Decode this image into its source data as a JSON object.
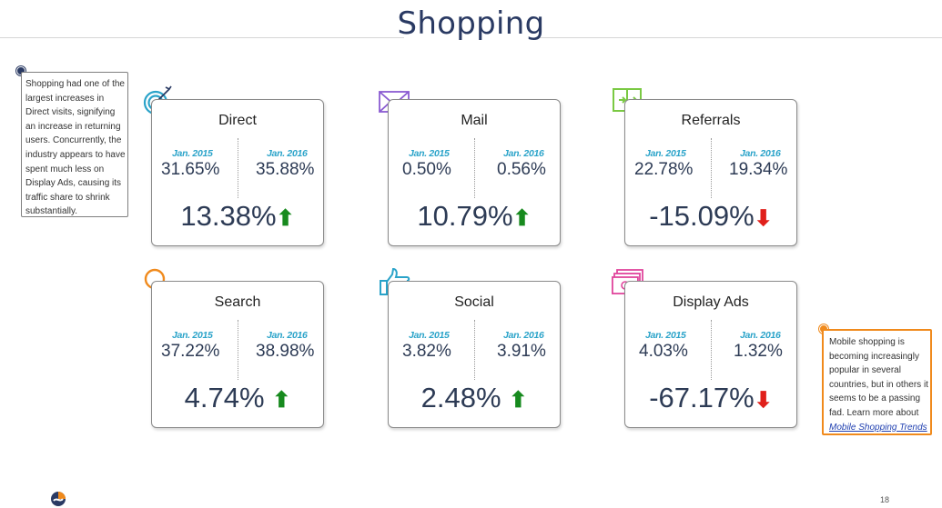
{
  "title": "Shopping",
  "left_note": "Shopping had one of the largest increases in Direct visits, signifying an increase in returning users.  Concurrently, the industry appears to have spent much less on Display Ads, causing its traffic share to shrink substantially.",
  "right_note": {
    "text": "Mobile shopping is becoming increasingly popular in several countries, but in others it seems to be a passing fad. Learn more about",
    "link": "Mobile Shopping Trends"
  },
  "cards": [
    {
      "name": "Direct",
      "y1_label": "Jan. 2015",
      "y1_value": "31.65%",
      "y2_label": "Jan. 2016",
      "y2_value": "35.88%",
      "change": "13.38%",
      "arrow": "⬆"
    },
    {
      "name": "Mail",
      "y1_label": "Jan. 2015",
      "y1_value": "0.50%",
      "y2_label": "Jan. 2016",
      "y2_value": "0.56%",
      "change": "10.79%",
      "arrow": "⬆"
    },
    {
      "name": "Referrals",
      "y1_label": "Jan. 2015",
      "y1_value": "22.78%",
      "y2_label": "Jan. 2016",
      "y2_value": "19.34%",
      "change": "-15.09%",
      "arrow": "⬇"
    },
    {
      "name": "Search",
      "y1_label": "Jan. 2015",
      "y1_value": "37.22%",
      "y2_label": "Jan. 2016",
      "y2_value": "38.98%",
      "change": "4.74%",
      "arrow": "⬆"
    },
    {
      "name": "Social",
      "y1_label": "Jan. 2015",
      "y1_value": "3.82%",
      "y2_label": "Jan. 2016",
      "y2_value": "3.91%",
      "change": "2.48%",
      "arrow": "⬆"
    },
    {
      "name": "Display Ads",
      "y1_label": "Jan. 2015",
      "y1_value": "4.03%",
      "y2_label": "Jan. 2016",
      "y2_value": "1.32%",
      "change": "-67.17%",
      "arrow": "⬇"
    }
  ],
  "icons": {
    "direct": "target-icon",
    "mail": "envelope-icon",
    "referrals": "referral-arrows-icon",
    "search": "magnifier-icon",
    "social": "thumbs-up-icon",
    "display_ads": "banknotes-icon"
  },
  "colors": {
    "title": "#2a3a63",
    "year_label": "#2aa3c9",
    "up": "#178a1e",
    "down": "#e0201b",
    "accent_orange": "#f08a1c"
  },
  "page_number": "18"
}
